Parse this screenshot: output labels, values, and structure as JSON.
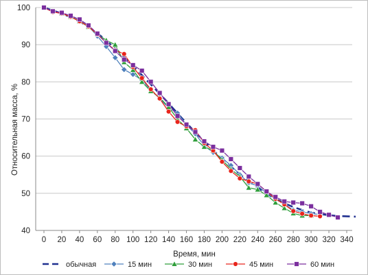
{
  "chart_data": {
    "type": "line",
    "title": "",
    "xlabel": "Время, мин",
    "ylabel": "Относительная масса, %",
    "xlim": [
      0,
      350
    ],
    "ylim": [
      40,
      100
    ],
    "xticks": [
      0,
      20,
      40,
      60,
      80,
      100,
      120,
      140,
      160,
      180,
      200,
      220,
      240,
      260,
      280,
      300,
      320,
      340
    ],
    "yticks": [
      40,
      50,
      60,
      70,
      80,
      90,
      100
    ],
    "grid": "horizontal",
    "legend_position": "bottom",
    "series": [
      {
        "name": "обычная",
        "color": "#1f2f8f",
        "style": "dashed",
        "marker": "none",
        "x": [
          0,
          10,
          20,
          30,
          40,
          50,
          60,
          70,
          80,
          90,
          100,
          110,
          120,
          130,
          140,
          150,
          160,
          170,
          180,
          190,
          200,
          210,
          220,
          230,
          240,
          250,
          260,
          270,
          280,
          290,
          300,
          310,
          320,
          330,
          340,
          350
        ],
        "y": [
          100,
          99.2,
          98.4,
          97.4,
          96.2,
          94.8,
          93.1,
          91.1,
          89.0,
          86.7,
          84.3,
          81.8,
          79.3,
          76.8,
          74.2,
          71.5,
          68.9,
          66.4,
          64.0,
          61.6,
          59.3,
          57.1,
          55.1,
          53.2,
          51.5,
          49.9,
          48.5,
          47.3,
          46.3,
          45.5,
          44.8,
          44.4,
          44.1,
          43.9,
          43.8,
          43.7
        ]
      },
      {
        "name": "15 мин",
        "color": "#4f81bd",
        "style": "solid",
        "marker": "diamond",
        "x": [
          0,
          10,
          20,
          30,
          40,
          50,
          60,
          70,
          80,
          90,
          100,
          110,
          120,
          130,
          140,
          150,
          160,
          170,
          180,
          190,
          200,
          210,
          220,
          230,
          240,
          250,
          260,
          270,
          280,
          290,
          300,
          310
        ],
        "y": [
          100,
          98.9,
          98.5,
          97.6,
          96.5,
          95.0,
          92.3,
          89.5,
          86.5,
          83.3,
          82.0,
          80.5,
          77.8,
          75.5,
          73.0,
          71.6,
          68.4,
          66.0,
          62.8,
          61.0,
          59.5,
          57.5,
          55.0,
          52.8,
          52.0,
          50.0,
          48.5,
          47.0,
          45.5,
          45.0,
          44.5,
          44.3
        ]
      },
      {
        "name": "30 мин",
        "color": "#2e9e3a",
        "style": "solid",
        "marker": "triangle",
        "x": [
          0,
          10,
          20,
          30,
          40,
          50,
          60,
          70,
          80,
          90,
          100,
          110,
          120,
          130,
          140,
          150,
          160,
          170,
          180,
          190,
          200,
          210,
          220,
          230,
          240,
          250,
          260,
          270,
          280,
          290,
          300
        ],
        "y": [
          100,
          98.9,
          98.4,
          97.5,
          96.3,
          94.8,
          92.8,
          91.2,
          90.0,
          85.3,
          83.2,
          80.0,
          77.5,
          75.8,
          73.2,
          70.0,
          67.5,
          64.5,
          62.5,
          61.5,
          59.0,
          56.5,
          54.5,
          51.5,
          51.0,
          49.5,
          47.5,
          46.0,
          44.6,
          44.0,
          44.0
        ]
      },
      {
        "name": "45 мин",
        "color": "#e8251c",
        "style": "solid",
        "marker": "circle",
        "x": [
          0,
          10,
          20,
          30,
          40,
          50,
          60,
          70,
          80,
          90,
          100,
          110,
          120,
          130,
          140,
          150,
          160,
          170,
          180,
          190,
          200,
          210,
          220,
          230,
          240,
          250,
          260,
          270,
          280,
          290,
          300,
          310
        ],
        "y": [
          100,
          98.8,
          98.4,
          97.5,
          96.3,
          94.9,
          92.8,
          90.5,
          88.5,
          87.5,
          84.0,
          81.0,
          78.0,
          75.5,
          72.0,
          69.2,
          68.0,
          67.0,
          63.5,
          61.5,
          58.5,
          56.0,
          54.0,
          53.2,
          52.5,
          50.5,
          48.5,
          47.0,
          45.2,
          44.5,
          44.0,
          43.8
        ]
      },
      {
        "name": "60 мин",
        "color": "#7b2f9e",
        "style": "solid",
        "marker": "square",
        "x": [
          0,
          10,
          20,
          30,
          40,
          50,
          60,
          70,
          80,
          90,
          100,
          110,
          120,
          130,
          140,
          150,
          160,
          170,
          180,
          190,
          200,
          210,
          220,
          230,
          240,
          250,
          260,
          270,
          280,
          290,
          300,
          310,
          320,
          330
        ],
        "y": [
          100,
          99.0,
          98.6,
          97.8,
          96.8,
          95.2,
          93.0,
          90.5,
          88.3,
          86.0,
          84.5,
          83.0,
          80.0,
          77.0,
          74.0,
          70.8,
          68.5,
          66.5,
          64.0,
          62.5,
          61.5,
          59.2,
          56.8,
          54.5,
          52.5,
          50.5,
          49.0,
          47.8,
          47.5,
          47.3,
          46.5,
          45.0,
          44.2,
          43.5
        ]
      }
    ]
  }
}
